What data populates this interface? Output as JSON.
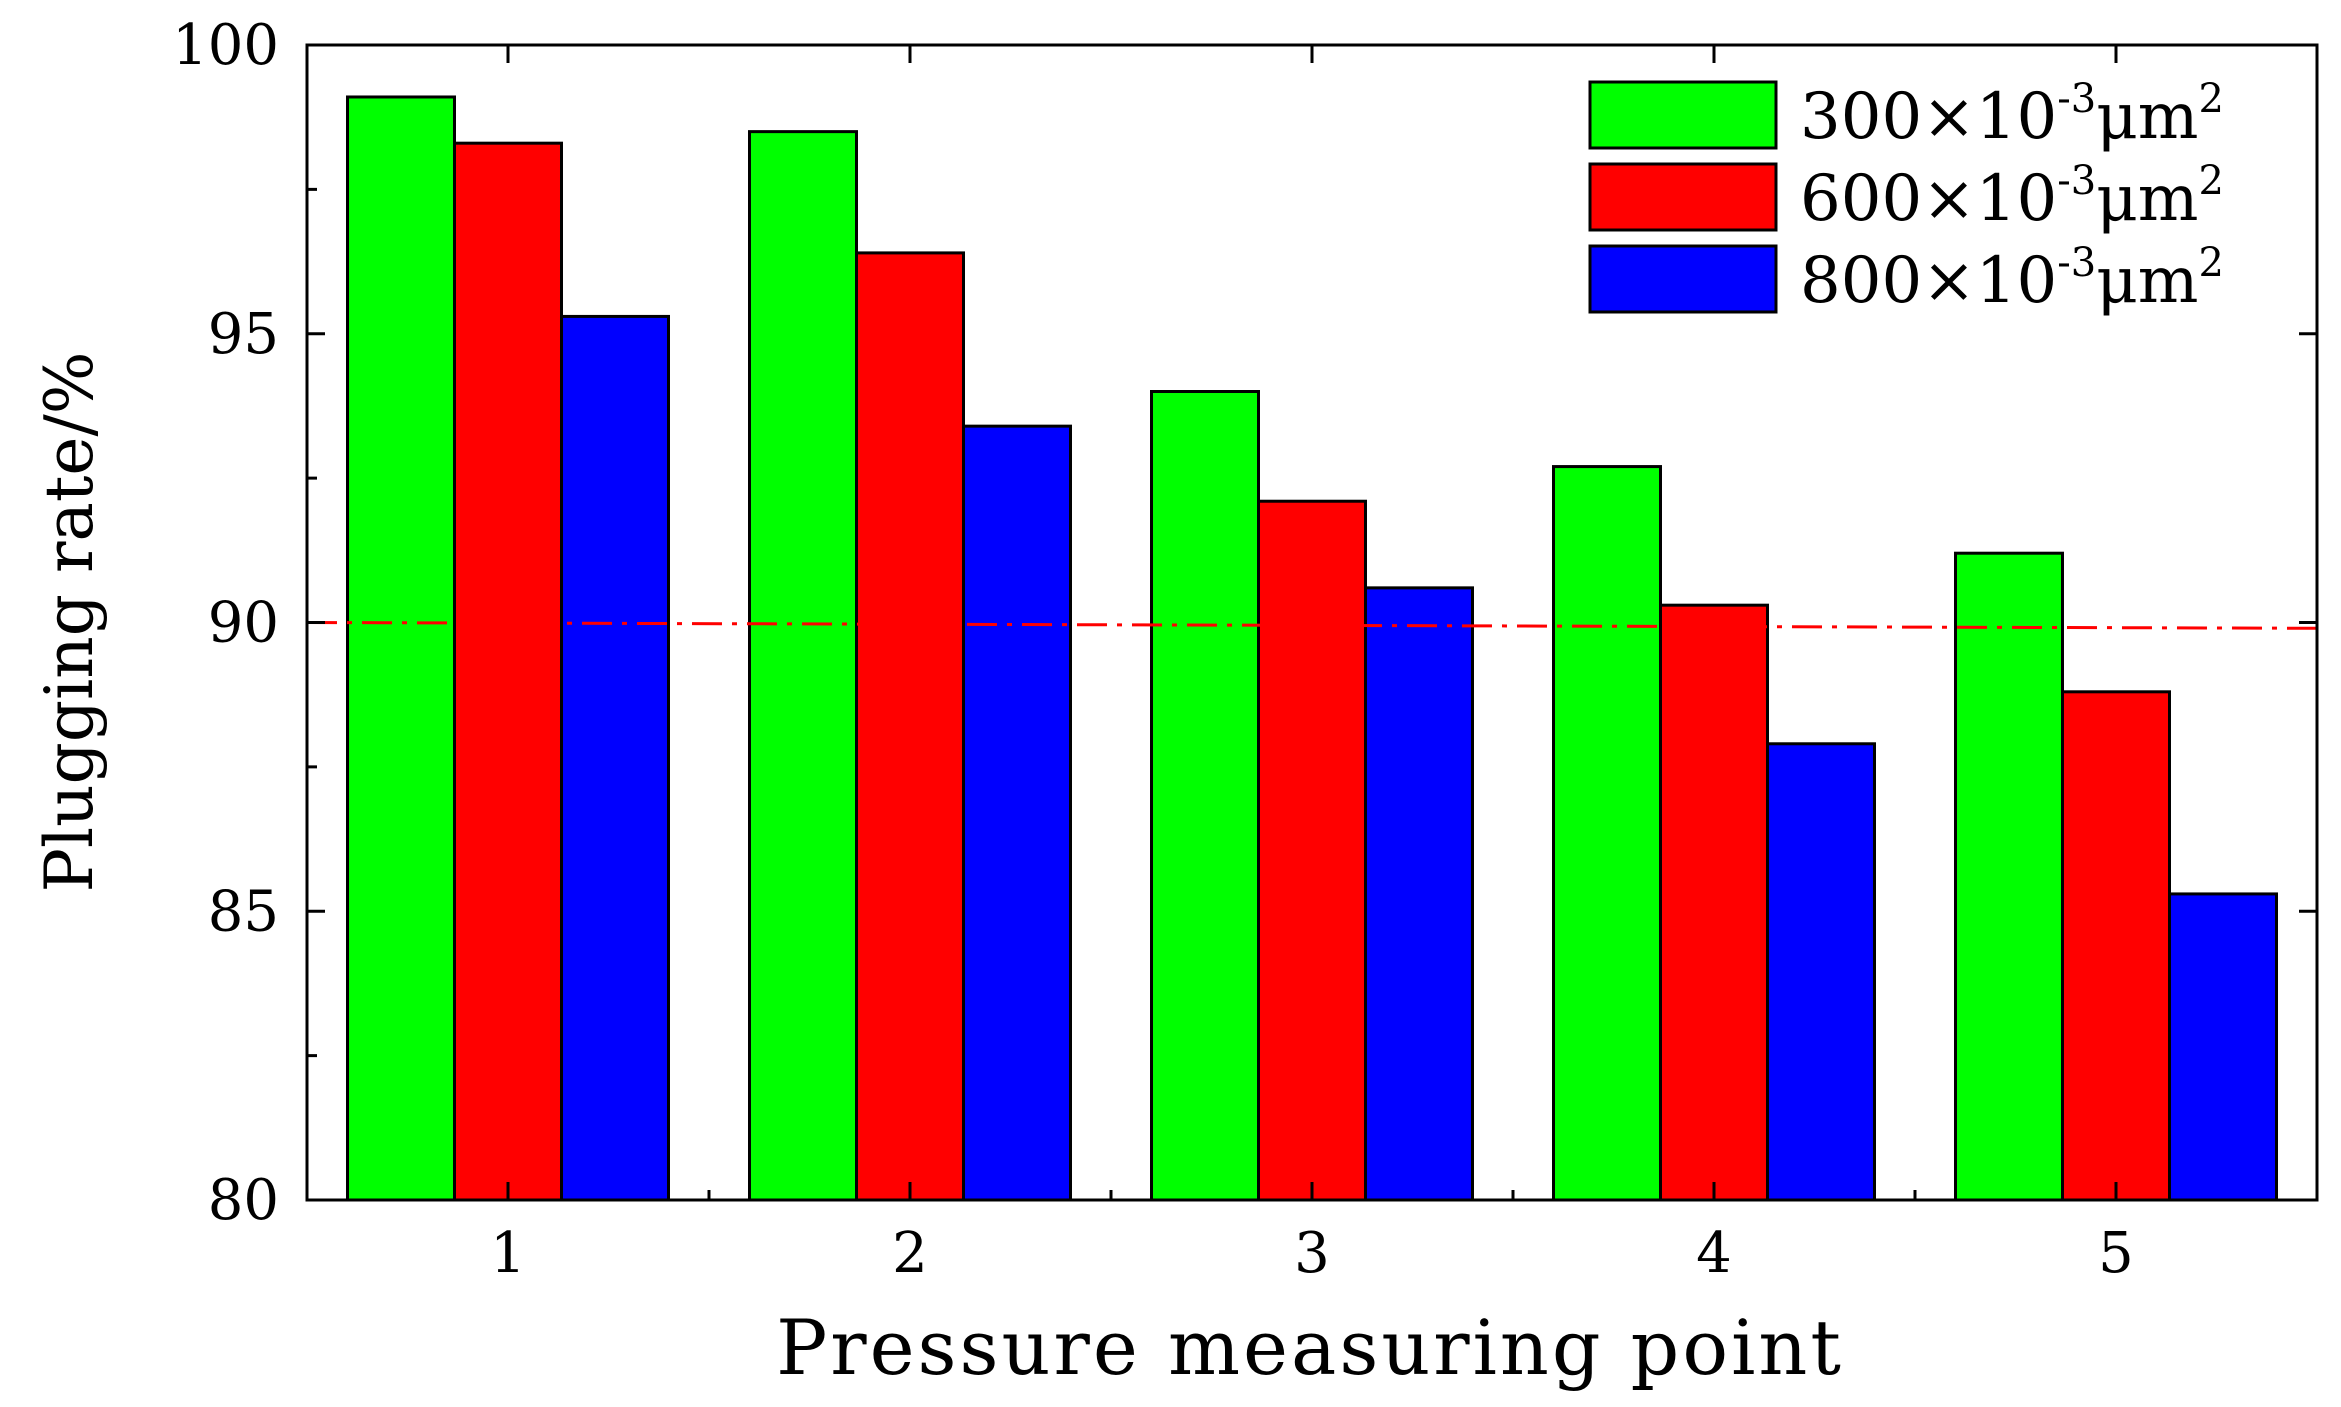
{
  "chart_data": {
    "type": "bar",
    "title": "",
    "xlabel": "Pressure measuring point",
    "ylabel": "Plugging rate/%",
    "categories": [
      "1",
      "2",
      "3",
      "4",
      "5"
    ],
    "series": [
      {
        "name": "300×10-3μm2",
        "coef": "300×10",
        "exp": "-3",
        "unit": "μm",
        "unit_exp": "2",
        "color": "#00ff00",
        "values": [
          99.1,
          98.5,
          94.0,
          92.7,
          91.2
        ]
      },
      {
        "name": "600×10-3μm2",
        "coef": "600×10",
        "exp": "-3",
        "unit": "μm",
        "unit_exp": "2",
        "color": "#ff0000",
        "values": [
          98.3,
          96.4,
          92.1,
          90.3,
          88.8
        ]
      },
      {
        "name": "800×10-3μm2",
        "coef": "800×10",
        "exp": "-3",
        "unit": "μm",
        "unit_exp": "2",
        "color": "#0000ff",
        "values": [
          95.3,
          93.4,
          90.6,
          87.9,
          85.3
        ]
      }
    ],
    "ylim": [
      80,
      100
    ],
    "yticks": [
      "80",
      "85",
      "90",
      "95",
      "100"
    ],
    "reference_line": {
      "y_start": 90.0,
      "y_end": 89.9,
      "style": "dash-dot",
      "color": "#ff0000"
    },
    "legend": "top-right",
    "grid": false
  }
}
